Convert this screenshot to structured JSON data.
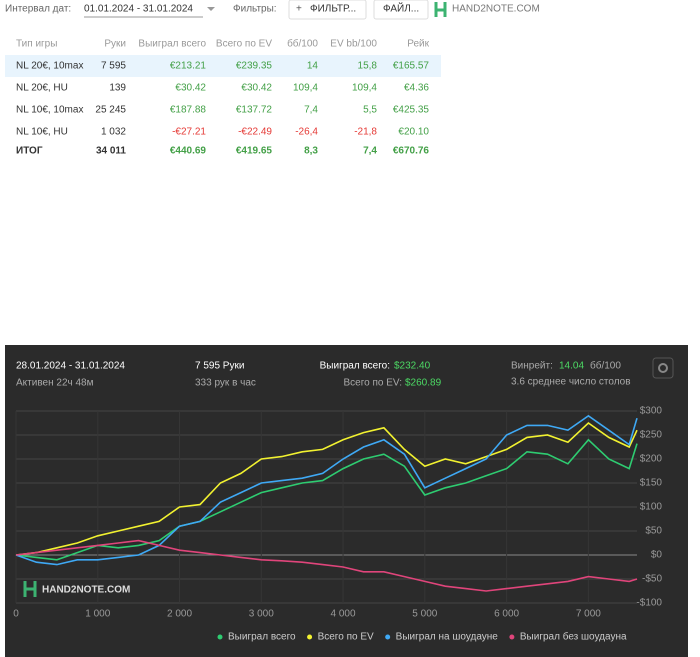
{
  "toolbar": {
    "date_label": "Интервал дат:",
    "date_range": "01.01.2024 - 31.01.2024",
    "filters_label": "Фильтры:",
    "filter_button": "ФИЛЬТР...",
    "file_button": "ФАЙЛ...",
    "logo": "HAND2NOTE.COM"
  },
  "table": {
    "headers": [
      "Тип игры",
      "Руки",
      "Выиграл всего",
      "Всего по EV",
      "бб/100",
      "EV bb/100",
      "Рейк"
    ],
    "rows": [
      [
        "NL 20€, 10max",
        "7 595",
        "€213.21",
        "€239.35",
        "14",
        "15,8",
        "€165.57"
      ],
      [
        "NL 20€, HU",
        "139",
        "€30.42",
        "€30.42",
        "109,4",
        "109,4",
        "€4.36"
      ],
      [
        "NL 10€, 10max",
        "25 245",
        "€187.88",
        "€137.72",
        "7,4",
        "5,5",
        "€425.35"
      ],
      [
        "NL 10€, HU",
        "1 032",
        "-€27.21",
        "-€22.49",
        "-26,4",
        "-21,8",
        "€20.10"
      ],
      [
        "ИТОГ",
        "34 011",
        "€440.69",
        "€419.65",
        "8,3",
        "7,4",
        "€670.76"
      ]
    ]
  },
  "panel": {
    "date_range": "28.01.2024 - 31.01.2024",
    "active": "Активен 22ч 48м",
    "hands": "7 595 Руки",
    "hands_per_hour": "333 рук в час",
    "won_label": "Выиграл всего:",
    "won_value": "$232.40",
    "ev_label": "Всего по EV:",
    "ev_value": "$260.89",
    "winrate_label": "Винрейт:",
    "winrate_value": "14.04",
    "winrate_unit": "бб/100",
    "tables": "3.6 среднее число столов"
  },
  "chart": {
    "type": "line",
    "watermark": "HAND2NOTE.COM",
    "x": [
      0,
      250,
      500,
      750,
      1000,
      1250,
      1500,
      1750,
      2000,
      2250,
      2500,
      2750,
      3000,
      3250,
      3500,
      3750,
      4000,
      4250,
      4500,
      4750,
      5000,
      5250,
      5500,
      5750,
      6000,
      6250,
      6500,
      6750,
      7000,
      7250,
      7500,
      7595
    ],
    "xlim": [
      0,
      7595
    ],
    "xticks": [
      0,
      {
        "value": 1000,
        "label": "1 000"
      },
      {
        "value": 2000,
        "label": "2 000"
      },
      {
        "value": 3000,
        "label": "3 000"
      },
      {
        "value": 4000,
        "label": "4 000"
      },
      {
        "value": 5000,
        "label": "5 000"
      },
      {
        "value": 6000,
        "label": "6 000"
      },
      {
        "value": 7000,
        "label": "7 000"
      }
    ],
    "ylim": [
      -100,
      300
    ],
    "yticks": [
      {
        "value": -100,
        "label": "-$100"
      },
      {
        "value": -50,
        "label": "-$50"
      },
      {
        "value": 0,
        "label": "$0"
      },
      {
        "value": 50,
        "label": "$50"
      },
      {
        "value": 100,
        "label": "$100"
      },
      {
        "value": 150,
        "label": "$150"
      },
      {
        "value": 200,
        "label": "$200"
      },
      {
        "value": 250,
        "label": "$250"
      },
      {
        "value": 300,
        "label": "$300"
      }
    ],
    "grid": true,
    "series": [
      {
        "name": "Выиграл всего",
        "color": "#2ecc71",
        "values": [
          0,
          -5,
          -10,
          5,
          20,
          15,
          20,
          30,
          60,
          70,
          90,
          110,
          130,
          140,
          150,
          155,
          180,
          200,
          210,
          185,
          125,
          140,
          150,
          165,
          180,
          215,
          210,
          190,
          240,
          200,
          180,
          232
        ]
      },
      {
        "name": "Всего по EV",
        "color": "#f2f230",
        "values": [
          0,
          5,
          15,
          25,
          40,
          50,
          60,
          70,
          100,
          105,
          150,
          170,
          200,
          205,
          215,
          220,
          240,
          255,
          265,
          220,
          185,
          200,
          190,
          205,
          220,
          245,
          250,
          235,
          275,
          245,
          225,
          260
        ]
      },
      {
        "name": "Выиграл на шоудауне",
        "color": "#3fa9f5",
        "values": [
          0,
          -15,
          -20,
          -10,
          -10,
          -5,
          0,
          20,
          60,
          70,
          110,
          130,
          150,
          155,
          160,
          170,
          200,
          225,
          240,
          210,
          140,
          160,
          180,
          200,
          250,
          270,
          270,
          260,
          290,
          260,
          230,
          285
        ]
      },
      {
        "name": "Выиграл без шоудауна",
        "color": "#e0457b",
        "values": [
          0,
          5,
          10,
          15,
          20,
          25,
          30,
          20,
          10,
          5,
          0,
          -5,
          -10,
          -12,
          -15,
          -20,
          -25,
          -35,
          -35,
          -45,
          -55,
          -65,
          -70,
          -75,
          -70,
          -65,
          -60,
          -55,
          -45,
          -50,
          -55,
          -50
        ]
      }
    ]
  }
}
